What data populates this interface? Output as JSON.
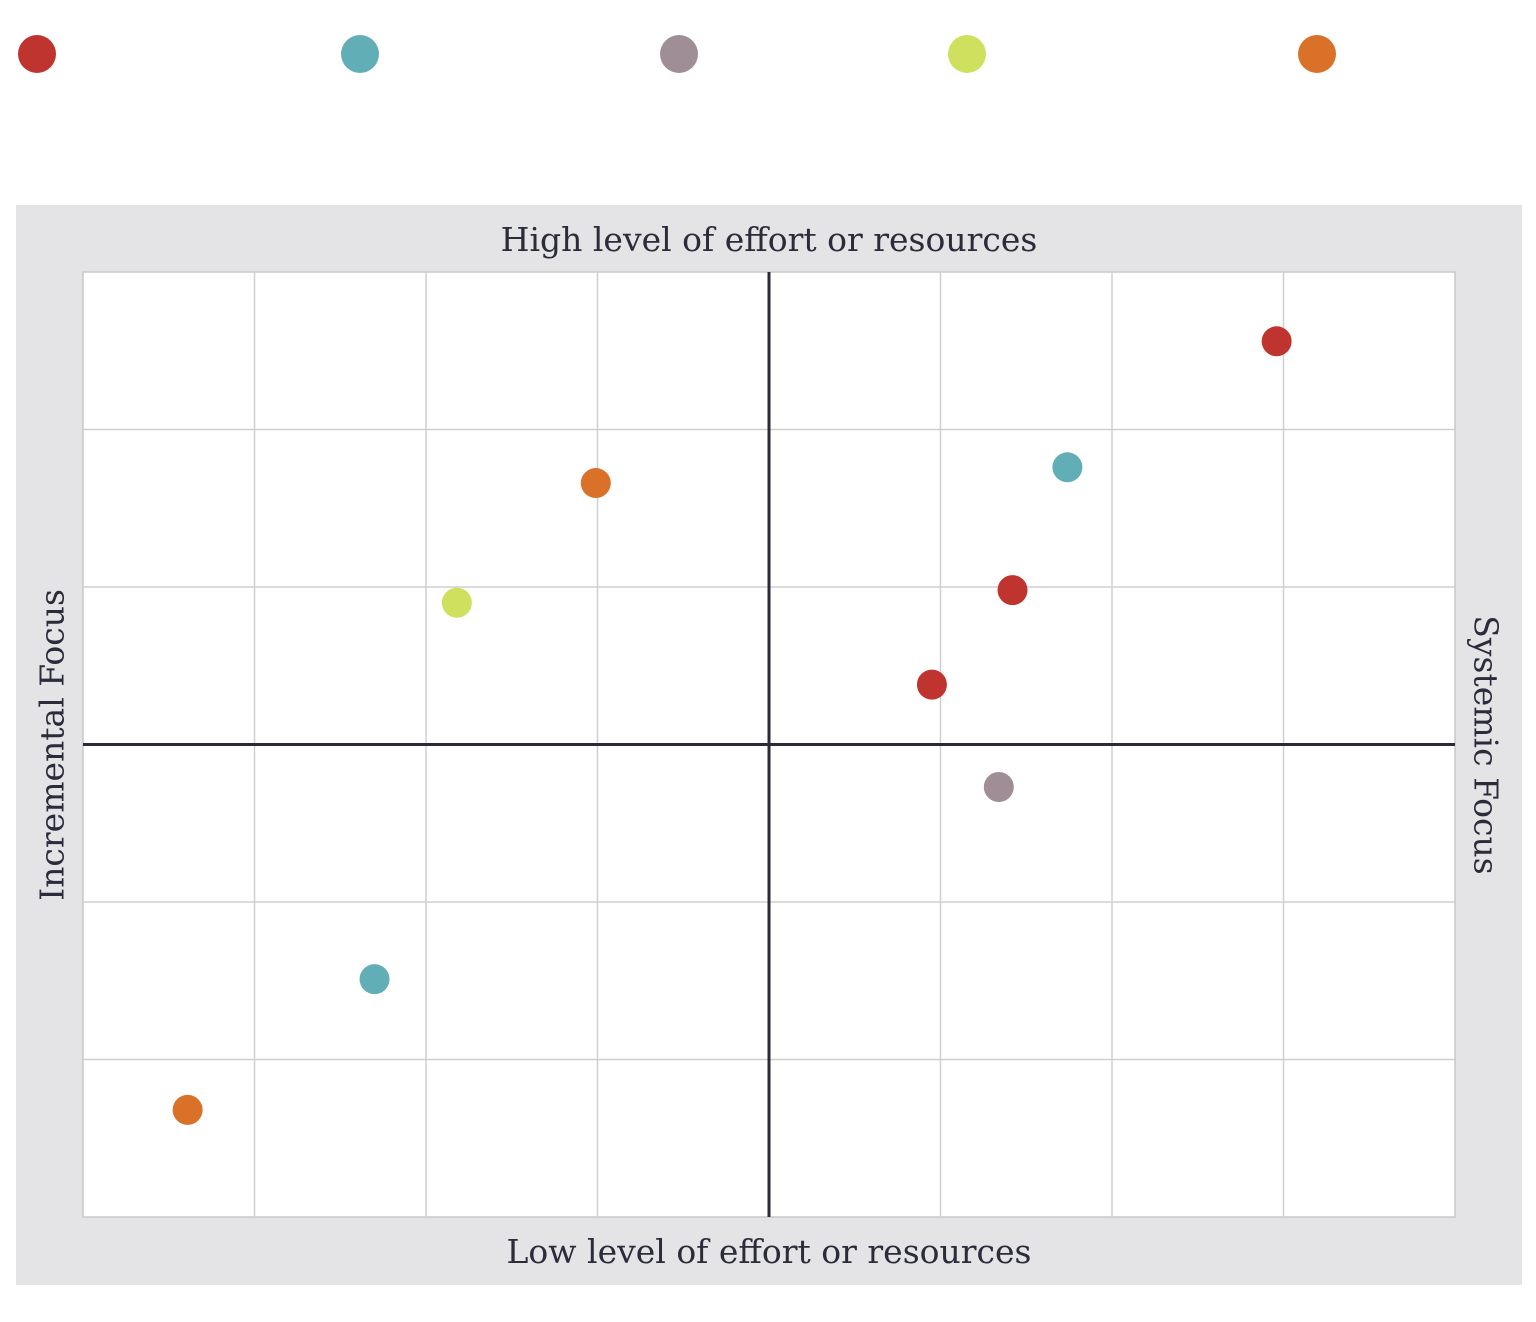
{
  "chart_data": {
    "type": "scatter",
    "title": "",
    "axis_labels": {
      "top": "High level of effort or resources",
      "bottom": "Low level of effort or resources",
      "left": "Incremental Focus",
      "right": "Systemic Focus"
    },
    "xlim": [
      -4,
      4
    ],
    "ylim": [
      -3,
      3
    ],
    "grid": true,
    "series": [
      {
        "color": "#c0342f",
        "points": [
          {
            "x": 2.96,
            "y": 2.56
          },
          {
            "x": 1.42,
            "y": 0.98
          },
          {
            "x": 0.95,
            "y": 0.38
          }
        ]
      },
      {
        "color": "#62aeb6",
        "points": [
          {
            "x": 1.74,
            "y": 1.76
          },
          {
            "x": -2.3,
            "y": -1.49
          }
        ]
      },
      {
        "color": "#a08e96",
        "points": [
          {
            "x": 1.34,
            "y": -0.27
          }
        ]
      },
      {
        "color": "#cfe05e",
        "points": [
          {
            "x": -1.82,
            "y": 0.9
          }
        ]
      },
      {
        "color": "#da7128",
        "points": [
          {
            "x": -1.01,
            "y": 1.66
          },
          {
            "x": -3.39,
            "y": -2.32
          }
        ]
      }
    ]
  }
}
